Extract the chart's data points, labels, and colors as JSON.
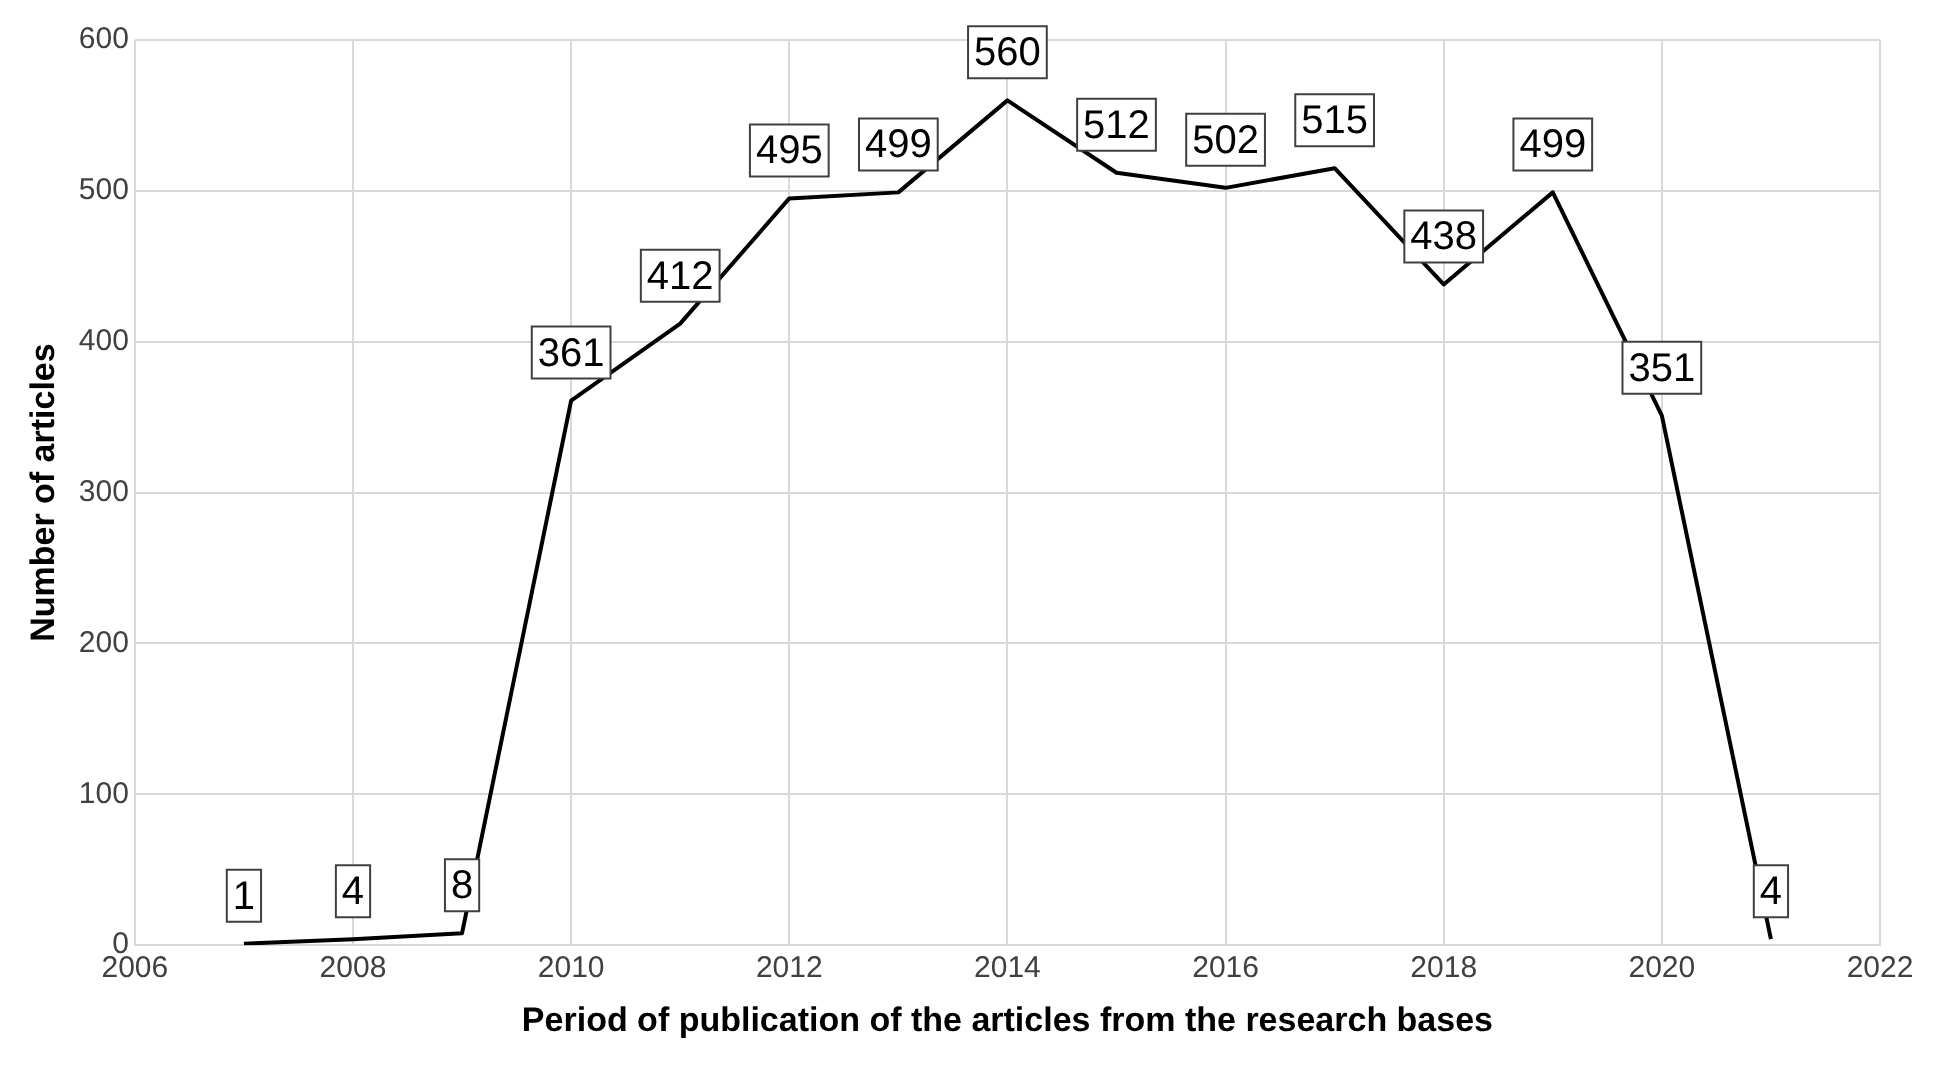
{
  "chart_data": {
    "type": "line",
    "xlabel": "Period of publication of the articles from the research bases",
    "ylabel": "Number of articles",
    "x": [
      2007,
      2008,
      2009,
      2010,
      2011,
      2012,
      2013,
      2014,
      2015,
      2016,
      2017,
      2018,
      2019,
      2020,
      2021
    ],
    "series": [
      {
        "color": "#000000",
        "values": [
          1,
          4,
          8,
          361,
          412,
          495,
          499,
          560,
          512,
          502,
          515,
          438,
          499,
          351,
          4
        ]
      }
    ],
    "xlim": [
      2006,
      2022
    ],
    "xticks": [
      2006,
      2008,
      2010,
      2012,
      2014,
      2016,
      2018,
      2020,
      2022
    ],
    "ylim": [
      0,
      600
    ],
    "yticks": [
      0,
      100,
      200,
      300,
      400,
      500,
      600
    ],
    "grid": true,
    "legend": false,
    "marker": "none",
    "line_style": "solid",
    "data_labels": true
  }
}
